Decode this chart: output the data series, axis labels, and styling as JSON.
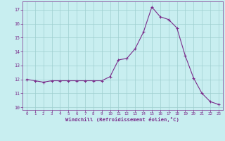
{
  "x": [
    0,
    1,
    2,
    3,
    4,
    5,
    6,
    7,
    8,
    9,
    10,
    11,
    12,
    13,
    14,
    15,
    16,
    17,
    18,
    19,
    20,
    21,
    22,
    23
  ],
  "y": [
    12.0,
    11.9,
    11.8,
    11.9,
    11.9,
    11.9,
    11.9,
    11.9,
    11.9,
    11.9,
    12.2,
    13.4,
    13.5,
    14.2,
    15.4,
    17.2,
    16.5,
    16.3,
    15.7,
    13.7,
    12.1,
    11.0,
    10.4,
    10.2
  ],
  "line_color": "#7b2d8b",
  "marker": "+",
  "marker_color": "#7b2d8b",
  "bg_color": "#c8eef0",
  "grid_color": "#9fcfcf",
  "xlabel": "Windchill (Refroidissement éolien,°C)",
  "xlabel_color": "#7b2d8b",
  "xlim": [
    -0.5,
    23.5
  ],
  "ylim": [
    9.8,
    17.6
  ],
  "xticks": [
    0,
    1,
    2,
    3,
    4,
    5,
    6,
    7,
    8,
    9,
    10,
    11,
    12,
    13,
    14,
    15,
    16,
    17,
    18,
    19,
    20,
    21,
    22,
    23
  ],
  "yticks": [
    10,
    11,
    12,
    13,
    14,
    15,
    16,
    17
  ],
  "tick_color": "#7b2d8b",
  "spine_color": "#7b2d8b"
}
